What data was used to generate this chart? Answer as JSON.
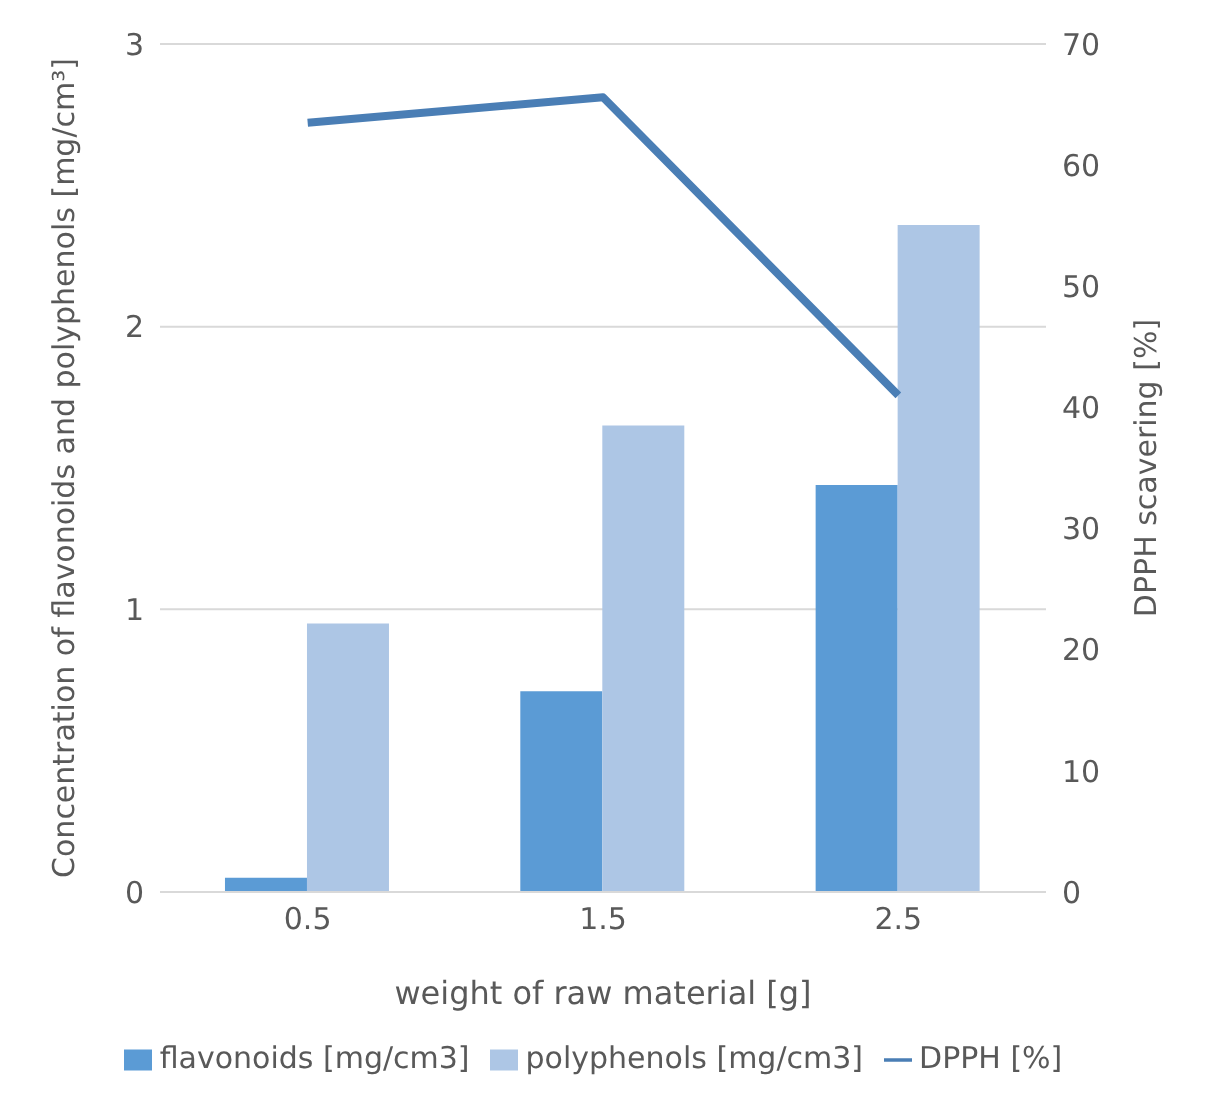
{
  "chart_data": {
    "type": "bar",
    "xlabel": "weight of raw material [g]",
    "ylabel": "Concentration of flavonoids and polyphenols [mg/cm³]",
    "y2label": "DPPH scavering [%]",
    "categories": [
      "0.5",
      "1.5",
      "2.5"
    ],
    "series": [
      {
        "name": "flavonoids [mg/cm3]",
        "color": "#5b9bd5",
        "values": [
          0.05,
          0.71,
          1.44
        ]
      },
      {
        "name": "polyphenols [mg/cm3]",
        "color": "#adc6e5",
        "values": [
          0.95,
          1.65,
          2.36
        ]
      },
      {
        "name": "DPPH [%]",
        "type": "line",
        "axis": "y2",
        "color": "#4a7eb5",
        "values": [
          63.5,
          65.6,
          41.0
        ]
      }
    ],
    "ylim": [
      0,
      3
    ],
    "yticks": [
      0,
      1,
      2,
      3
    ],
    "y2lim": [
      0,
      70
    ],
    "y2ticks": [
      0,
      10,
      20,
      30,
      40,
      50,
      60,
      70
    ],
    "grid": "y",
    "legend": "bottom",
    "marker": "none"
  }
}
